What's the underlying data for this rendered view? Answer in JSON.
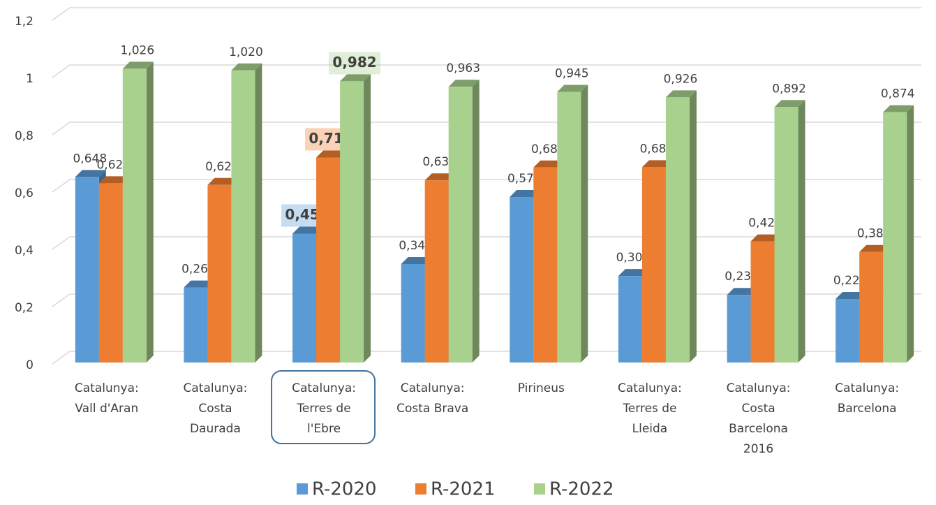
{
  "chart_data": {
    "type": "bar3d",
    "categories": [
      "Catalunya: Vall d'Aran",
      "Catalunya: Costa Daurada",
      "Catalunya: Terres de l'Ebre",
      "Catalunya: Costa Brava",
      "Pirineus",
      "Catalunya: Terres de Lleida",
      "Catalunya: Costa Barcelona 2016",
      "Catalunya: Barcelona"
    ],
    "series": [
      {
        "name": "R-2020",
        "color": "#5b9bd5",
        "values": [
          0.648,
          0.262,
          0.45,
          0.344,
          0.578,
          0.302,
          0.236,
          0.222
        ],
        "value_labels": [
          "0,648",
          "0,262",
          "0,450",
          "0,344",
          "0,578",
          "0,302",
          "0,236",
          "0,222"
        ]
      },
      {
        "name": "R-2021",
        "color": "#ed7d31",
        "values": [
          0.626,
          0.62,
          0.716,
          0.636,
          0.681,
          0.682,
          0.423,
          0.386
        ],
        "value_labels": [
          "0,626",
          "0,620",
          "0,716",
          "0,636",
          "0,681",
          "0,682",
          "0,423",
          "0,386"
        ]
      },
      {
        "name": "R-2022",
        "color": "#a9d18e",
        "values": [
          1.026,
          1.02,
          0.982,
          0.963,
          0.945,
          0.926,
          0.892,
          0.874
        ],
        "value_labels": [
          "1,026",
          "1,020",
          "0,982",
          "0,963",
          "0,945",
          "0,926",
          "0,892",
          "0,874"
        ]
      }
    ],
    "ylim": [
      0,
      1.2
    ],
    "yticks": [
      0,
      {
        "value": 0.2,
        "label": "0,2"
      },
      {
        "value": 0.4,
        "label": "0,4"
      },
      {
        "value": 0.6,
        "label": "0,6"
      },
      {
        "value": 0.8,
        "label": "0,8"
      },
      1,
      {
        "value": 1.2,
        "label": "1,2"
      }
    ],
    "grid": true,
    "legend": "bottom",
    "highlight": 2
  }
}
